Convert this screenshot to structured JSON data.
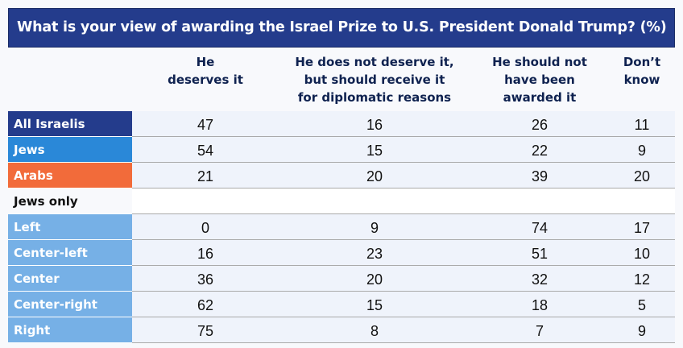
{
  "title": "What is your view of awarding the Israel Prize to U.S. President Donald Trump? (%)",
  "chart_data": {
    "type": "table",
    "title": "What is your view of awarding the Israel Prize to U.S. President Donald Trump? (%)",
    "columns": [
      "He deserves it",
      "He does not deserve it, but should receive it for diplomatic reasons",
      "He should not have been awarded it",
      "Don't know"
    ],
    "column_lines": [
      [
        "He",
        "deserves it"
      ],
      [
        "He does not deserve it,",
        "but should receive it",
        "for diplomatic reasons"
      ],
      [
        "He should not",
        "have been",
        "awarded it"
      ],
      [
        "Don’t",
        "know"
      ]
    ],
    "rows": [
      {
        "label": "All Israelis",
        "values": [
          47,
          16,
          26,
          11
        ],
        "color": "#243c8c"
      },
      {
        "label": "Jews",
        "values": [
          54,
          15,
          22,
          9
        ],
        "color": "#2a88d8"
      },
      {
        "label": "Arabs",
        "values": [
          21,
          20,
          39,
          20
        ],
        "color": "#f26b3a"
      },
      {
        "label": "Jews only",
        "values": [],
        "subheader": true
      },
      {
        "label": "Left",
        "values": [
          0,
          9,
          74,
          17
        ],
        "color": "#76b0e6"
      },
      {
        "label": "Center-left",
        "values": [
          16,
          23,
          51,
          10
        ],
        "color": "#76b0e6"
      },
      {
        "label": "Center",
        "values": [
          36,
          20,
          32,
          12
        ],
        "color": "#76b0e6"
      },
      {
        "label": "Center-right",
        "values": [
          62,
          15,
          18,
          5
        ],
        "color": "#76b0e6"
      },
      {
        "label": "Right",
        "values": [
          75,
          8,
          7,
          9
        ],
        "color": "#76b0e6"
      }
    ]
  }
}
